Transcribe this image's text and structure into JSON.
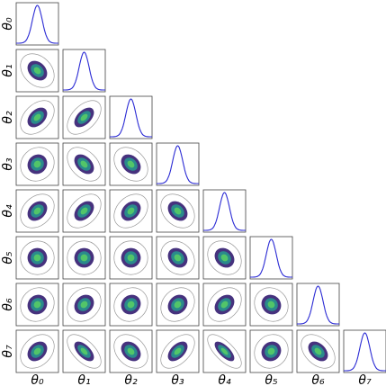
{
  "chart_data": {
    "type": "corner",
    "labels": [
      "θ₀",
      "θ₁",
      "θ₂",
      "θ₃",
      "θ₄",
      "θ₅",
      "θ₆",
      "θ₇"
    ],
    "marginal_color": "#2b2bd4",
    "contour_colors": [
      "#46327e",
      "#2a8a8c",
      "#52c569"
    ],
    "correlations": [
      [
        -0.3
      ],
      [
        0.4,
        0.5
      ],
      [
        0.1,
        -0.4,
        -0.3
      ],
      [
        0.3,
        0.4,
        0.3,
        -0.3
      ],
      [
        0.0,
        0.0,
        0.0,
        -0.2,
        -0.2
      ],
      [
        0.1,
        0.2,
        0.1,
        0.2,
        0.3,
        -0.1
      ],
      [
        0.3,
        -0.6,
        -0.3,
        0.5,
        -0.7,
        0.1,
        -0.4
      ]
    ]
  }
}
